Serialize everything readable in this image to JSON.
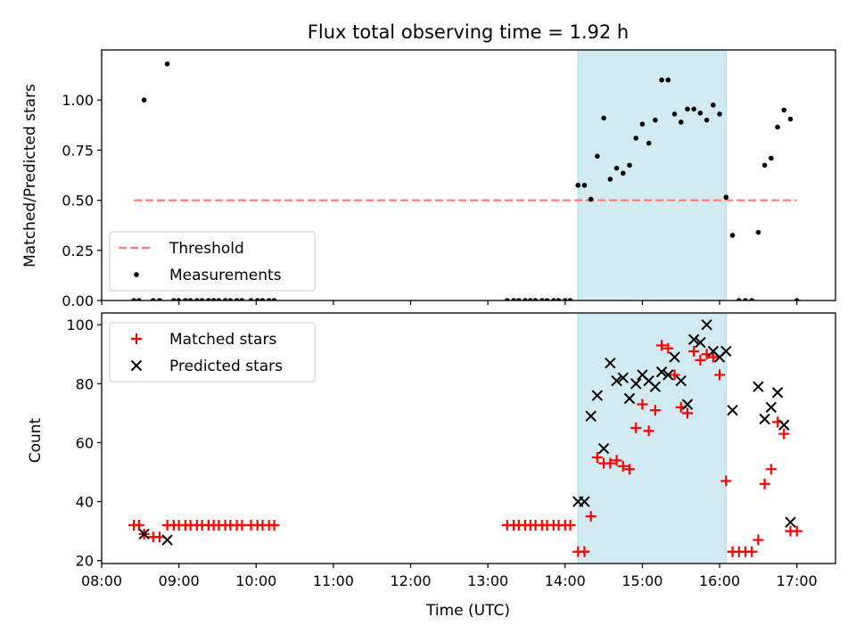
{
  "figure": {
    "title": "Flux total observing time = 1.92 h"
  },
  "chart_data": [
    {
      "type": "scatter",
      "ylabel": "Matched/Predicted stars",
      "xlim": [
        "08:00",
        "17:30"
      ],
      "ylim": [
        0,
        1.25
      ],
      "xticks": [
        "08:00",
        "09:00",
        "10:00",
        "11:00",
        "12:00",
        "13:00",
        "14:00",
        "15:00",
        "16:00",
        "17:00"
      ],
      "yticks": [
        "0.00",
        "0.25",
        "0.50",
        "0.75",
        "1.00"
      ],
      "shaded_interval": {
        "start": "14:10",
        "end": "16:05",
        "color": "#add8e6"
      },
      "threshold": {
        "name": "Threshold",
        "value": 0.5,
        "x_range": [
          "08:25",
          "17:00"
        ],
        "color": "#ff7b7b",
        "style": "dashed"
      },
      "legend": {
        "position": "lower-left",
        "entries": [
          "Threshold",
          "Measurements"
        ]
      },
      "series": [
        {
          "name": "Measurements",
          "color": "#000000",
          "marker": "dot",
          "points": [
            [
              "08:25",
              0
            ],
            [
              "08:29",
              0
            ],
            [
              "08:33",
              1.0
            ],
            [
              "08:40",
              0
            ],
            [
              "08:45",
              0
            ],
            [
              "08:51",
              1.18
            ],
            [
              "08:56",
              0
            ],
            [
              "09:00",
              0
            ],
            [
              "09:05",
              0
            ],
            [
              "09:09",
              0
            ],
            [
              "09:14",
              0
            ],
            [
              "09:18",
              0
            ],
            [
              "09:23",
              0
            ],
            [
              "09:27",
              0
            ],
            [
              "09:31",
              0
            ],
            [
              "09:36",
              0
            ],
            [
              "09:40",
              0
            ],
            [
              "09:45",
              0
            ],
            [
              "09:49",
              0
            ],
            [
              "09:56",
              0
            ],
            [
              "10:01",
              0
            ],
            [
              "10:05",
              0
            ],
            [
              "10:10",
              0
            ],
            [
              "10:14",
              0
            ],
            [
              "13:15",
              0
            ],
            [
              "13:20",
              0
            ],
            [
              "13:24",
              0
            ],
            [
              "13:29",
              0
            ],
            [
              "13:33",
              0
            ],
            [
              "13:37",
              0
            ],
            [
              "13:42",
              0
            ],
            [
              "13:46",
              0
            ],
            [
              "13:51",
              0
            ],
            [
              "13:55",
              0
            ],
            [
              "14:00",
              0
            ],
            [
              "14:04",
              0
            ],
            [
              "14:10",
              0.575
            ],
            [
              "14:15",
              0.575
            ],
            [
              "14:20",
              0.505
            ],
            [
              "14:25",
              0.72
            ],
            [
              "14:30",
              0.91
            ],
            [
              "14:35",
              0.605
            ],
            [
              "14:40",
              0.66
            ],
            [
              "14:45",
              0.635
            ],
            [
              "14:50",
              0.675
            ],
            [
              "14:55",
              0.81
            ],
            [
              "15:00",
              0.88
            ],
            [
              "15:05",
              0.785
            ],
            [
              "15:10",
              0.9
            ],
            [
              "15:15",
              1.1
            ],
            [
              "15:20",
              1.1
            ],
            [
              "15:25",
              0.93
            ],
            [
              "15:30",
              0.89
            ],
            [
              "15:35",
              0.955
            ],
            [
              "15:40",
              0.955
            ],
            [
              "15:45",
              0.935
            ],
            [
              "15:50",
              0.9
            ],
            [
              "15:55",
              0.975
            ],
            [
              "16:00",
              0.93
            ],
            [
              "16:05",
              0.515
            ],
            [
              "16:10",
              0.325
            ],
            [
              "16:15",
              0
            ],
            [
              "16:20",
              0
            ],
            [
              "16:25",
              0
            ],
            [
              "16:30",
              0.34
            ],
            [
              "16:35",
              0.675
            ],
            [
              "16:40",
              0.71
            ],
            [
              "16:45",
              0.865
            ],
            [
              "16:50",
              0.95
            ],
            [
              "16:55",
              0.905
            ],
            [
              "17:00",
              0
            ]
          ]
        }
      ]
    },
    {
      "type": "scatter",
      "xlabel": "Time (UTC)",
      "ylabel": "Count",
      "xlim": [
        "08:00",
        "17:30"
      ],
      "ylim": [
        19,
        104
      ],
      "xticks": [
        "08:00",
        "09:00",
        "10:00",
        "11:00",
        "12:00",
        "13:00",
        "14:00",
        "15:00",
        "16:00",
        "17:00"
      ],
      "yticks": [
        "20",
        "40",
        "60",
        "80",
        "100"
      ],
      "shaded_interval": {
        "start": "14:10",
        "end": "16:05",
        "color": "#add8e6"
      },
      "legend": {
        "position": "upper-left",
        "entries": [
          "Matched stars",
          "Predicted stars"
        ]
      },
      "series": [
        {
          "name": "Matched stars",
          "color": "#ff0000",
          "marker": "plus",
          "points": [
            [
              "08:25",
              32
            ],
            [
              "08:29",
              32
            ],
            [
              "08:33",
              29
            ],
            [
              "08:40",
              28
            ],
            [
              "08:45",
              28
            ],
            [
              "08:51",
              32
            ],
            [
              "08:56",
              32
            ],
            [
              "09:00",
              32
            ],
            [
              "09:05",
              32
            ],
            [
              "09:09",
              32
            ],
            [
              "09:14",
              32
            ],
            [
              "09:18",
              32
            ],
            [
              "09:23",
              32
            ],
            [
              "09:27",
              32
            ],
            [
              "09:31",
              32
            ],
            [
              "09:36",
              32
            ],
            [
              "09:40",
              32
            ],
            [
              "09:45",
              32
            ],
            [
              "09:49",
              32
            ],
            [
              "09:56",
              32
            ],
            [
              "10:01",
              32
            ],
            [
              "10:05",
              32
            ],
            [
              "10:10",
              32
            ],
            [
              "10:14",
              32
            ],
            [
              "13:15",
              32
            ],
            [
              "13:20",
              32
            ],
            [
              "13:24",
              32
            ],
            [
              "13:29",
              32
            ],
            [
              "13:33",
              32
            ],
            [
              "13:37",
              32
            ],
            [
              "13:42",
              32
            ],
            [
              "13:46",
              32
            ],
            [
              "13:51",
              32
            ],
            [
              "13:55",
              32
            ],
            [
              "14:00",
              32
            ],
            [
              "14:04",
              32
            ],
            [
              "14:10",
              23
            ],
            [
              "14:15",
              23
            ],
            [
              "14:20",
              35
            ],
            [
              "14:25",
              55
            ],
            [
              "14:30",
              53
            ],
            [
              "14:35",
              53
            ],
            [
              "14:40",
              54
            ],
            [
              "14:45",
              52
            ],
            [
              "14:50",
              51
            ],
            [
              "14:55",
              65
            ],
            [
              "15:00",
              73
            ],
            [
              "15:05",
              64
            ],
            [
              "15:10",
              71
            ],
            [
              "15:15",
              93
            ],
            [
              "15:20",
              92
            ],
            [
              "15:25",
              83
            ],
            [
              "15:30",
              72
            ],
            [
              "15:35",
              70
            ],
            [
              "15:40",
              91
            ],
            [
              "15:45",
              88
            ],
            [
              "15:50",
              90
            ],
            [
              "15:55",
              89
            ],
            [
              "16:00",
              83
            ],
            [
              "16:05",
              47
            ],
            [
              "16:10",
              23
            ],
            [
              "16:15",
              23
            ],
            [
              "16:20",
              23
            ],
            [
              "16:25",
              23
            ],
            [
              "16:30",
              27
            ],
            [
              "16:35",
              46
            ],
            [
              "16:40",
              51
            ],
            [
              "16:45",
              67
            ],
            [
              "16:50",
              63
            ],
            [
              "16:55",
              30
            ],
            [
              "17:00",
              30
            ]
          ]
        },
        {
          "name": "Predicted stars",
          "color": "#000000",
          "marker": "x",
          "points": [
            [
              "08:33",
              29
            ],
            [
              "08:51",
              27
            ],
            [
              "14:10",
              40
            ],
            [
              "14:15",
              40
            ],
            [
              "14:20",
              69
            ],
            [
              "14:25",
              76
            ],
            [
              "14:30",
              58
            ],
            [
              "14:35",
              87
            ],
            [
              "14:40",
              81
            ],
            [
              "14:45",
              82
            ],
            [
              "14:50",
              75
            ],
            [
              "14:55",
              80
            ],
            [
              "15:00",
              83
            ],
            [
              "15:05",
              81
            ],
            [
              "15:10",
              79
            ],
            [
              "15:15",
              84
            ],
            [
              "15:20",
              83
            ],
            [
              "15:25",
              89
            ],
            [
              "15:30",
              81
            ],
            [
              "15:35",
              73
            ],
            [
              "15:40",
              95
            ],
            [
              "15:45",
              94
            ],
            [
              "15:50",
              100
            ],
            [
              "15:55",
              91
            ],
            [
              "16:00",
              89
            ],
            [
              "16:05",
              91
            ],
            [
              "16:10",
              71
            ],
            [
              "16:30",
              79
            ],
            [
              "16:35",
              68
            ],
            [
              "16:40",
              72
            ],
            [
              "16:45",
              77
            ],
            [
              "16:50",
              66
            ],
            [
              "16:55",
              33
            ]
          ]
        }
      ]
    }
  ]
}
